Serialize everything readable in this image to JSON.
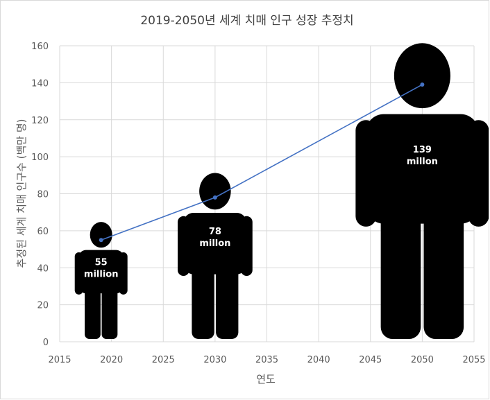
{
  "chart_data": {
    "type": "line",
    "title": "2019-2050년 세계 치매 인구 성장 추정치",
    "xlabel": "연도",
    "ylabel": "추정된 세계 치매 인구수 (백만 명)",
    "xlim": [
      2015,
      2055
    ],
    "ylim": [
      0,
      160
    ],
    "x_ticks": [
      "2015",
      "2020",
      "2025",
      "2030",
      "2035",
      "2040",
      "2045",
      "2050",
      "2055"
    ],
    "y_ticks": [
      "0",
      "20",
      "40",
      "60",
      "80",
      "100",
      "120",
      "140",
      "160"
    ],
    "grid": true,
    "series": [
      {
        "x": [
          2019,
          2030,
          2050
        ],
        "values": [
          55,
          78,
          139
        ],
        "color": "#4472c4"
      }
    ],
    "annotations": [
      {
        "value": "55",
        "unit": "million"
      },
      {
        "value": "78",
        "unit": "millon"
      },
      {
        "value": "139",
        "unit": "millon"
      }
    ]
  }
}
